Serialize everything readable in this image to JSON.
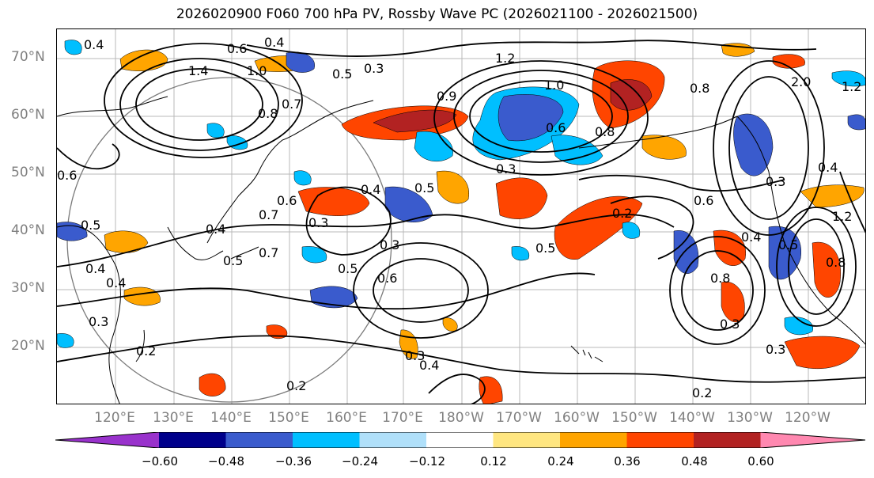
{
  "title": "2026020900 F060 700 hPa PV, Rossby Wave PC (2026021100 - 2026021500)",
  "map": {
    "projection": "lat-lon",
    "lon_range": "110°E - 115°W",
    "lat_range": "10°N - 75°N",
    "gridlines": true,
    "coastlines": true,
    "contour_color": "#000000"
  },
  "lat_labels": [
    "70°N",
    "60°N",
    "50°N",
    "40°N",
    "30°N",
    "20°N"
  ],
  "lon_labels": [
    "120°E",
    "130°E",
    "140°E",
    "150°E",
    "160°E",
    "170°E",
    "180°W",
    "170°W",
    "160°W",
    "150°W",
    "140°W",
    "130°W",
    "120°W"
  ],
  "contour_labels": [
    "0.4",
    "0.4",
    "0.6",
    "1.4",
    "1.0",
    "0.5",
    "0.3",
    "1.2",
    "1.0",
    "0.8",
    "2.0",
    "1.2",
    "0.7",
    "0.8",
    "0.9",
    "0.8",
    "0.6",
    "0.3",
    "0.5",
    "0.4",
    "0.5",
    "0.6",
    "0.3",
    "0.4",
    "0.5",
    "0.7",
    "0.4",
    "0.5",
    "0.3",
    "0.2",
    "0.6",
    "0.5",
    "0.8",
    "0.3",
    "0.3",
    "0.4",
    "0.2",
    "0.2",
    "0.3",
    "0.4",
    "0.3",
    "0.6",
    "0.5",
    "0.8",
    "0.4",
    "1.2",
    "0.6",
    "0.4",
    "0.3",
    "0.7",
    "0.2"
  ],
  "colorbar": {
    "extend": "both",
    "levels": [
      -0.6,
      -0.48,
      -0.36,
      -0.24,
      -0.12,
      0.12,
      0.24,
      0.36,
      0.48,
      0.6
    ],
    "colors": [
      "#9932cc",
      "#00008b",
      "#3a5bcd",
      "#00bfff",
      "#b0e0fa",
      "#ffffff",
      "#ffe680",
      "#ffa500",
      "#ff4500",
      "#b22222",
      "#ff88b0"
    ],
    "tick_labels": [
      "−0.60",
      "−0.48",
      "−0.36",
      "−0.24",
      "−0.12",
      "0.12",
      "0.24",
      "0.36",
      "0.48",
      "0.60"
    ]
  }
}
